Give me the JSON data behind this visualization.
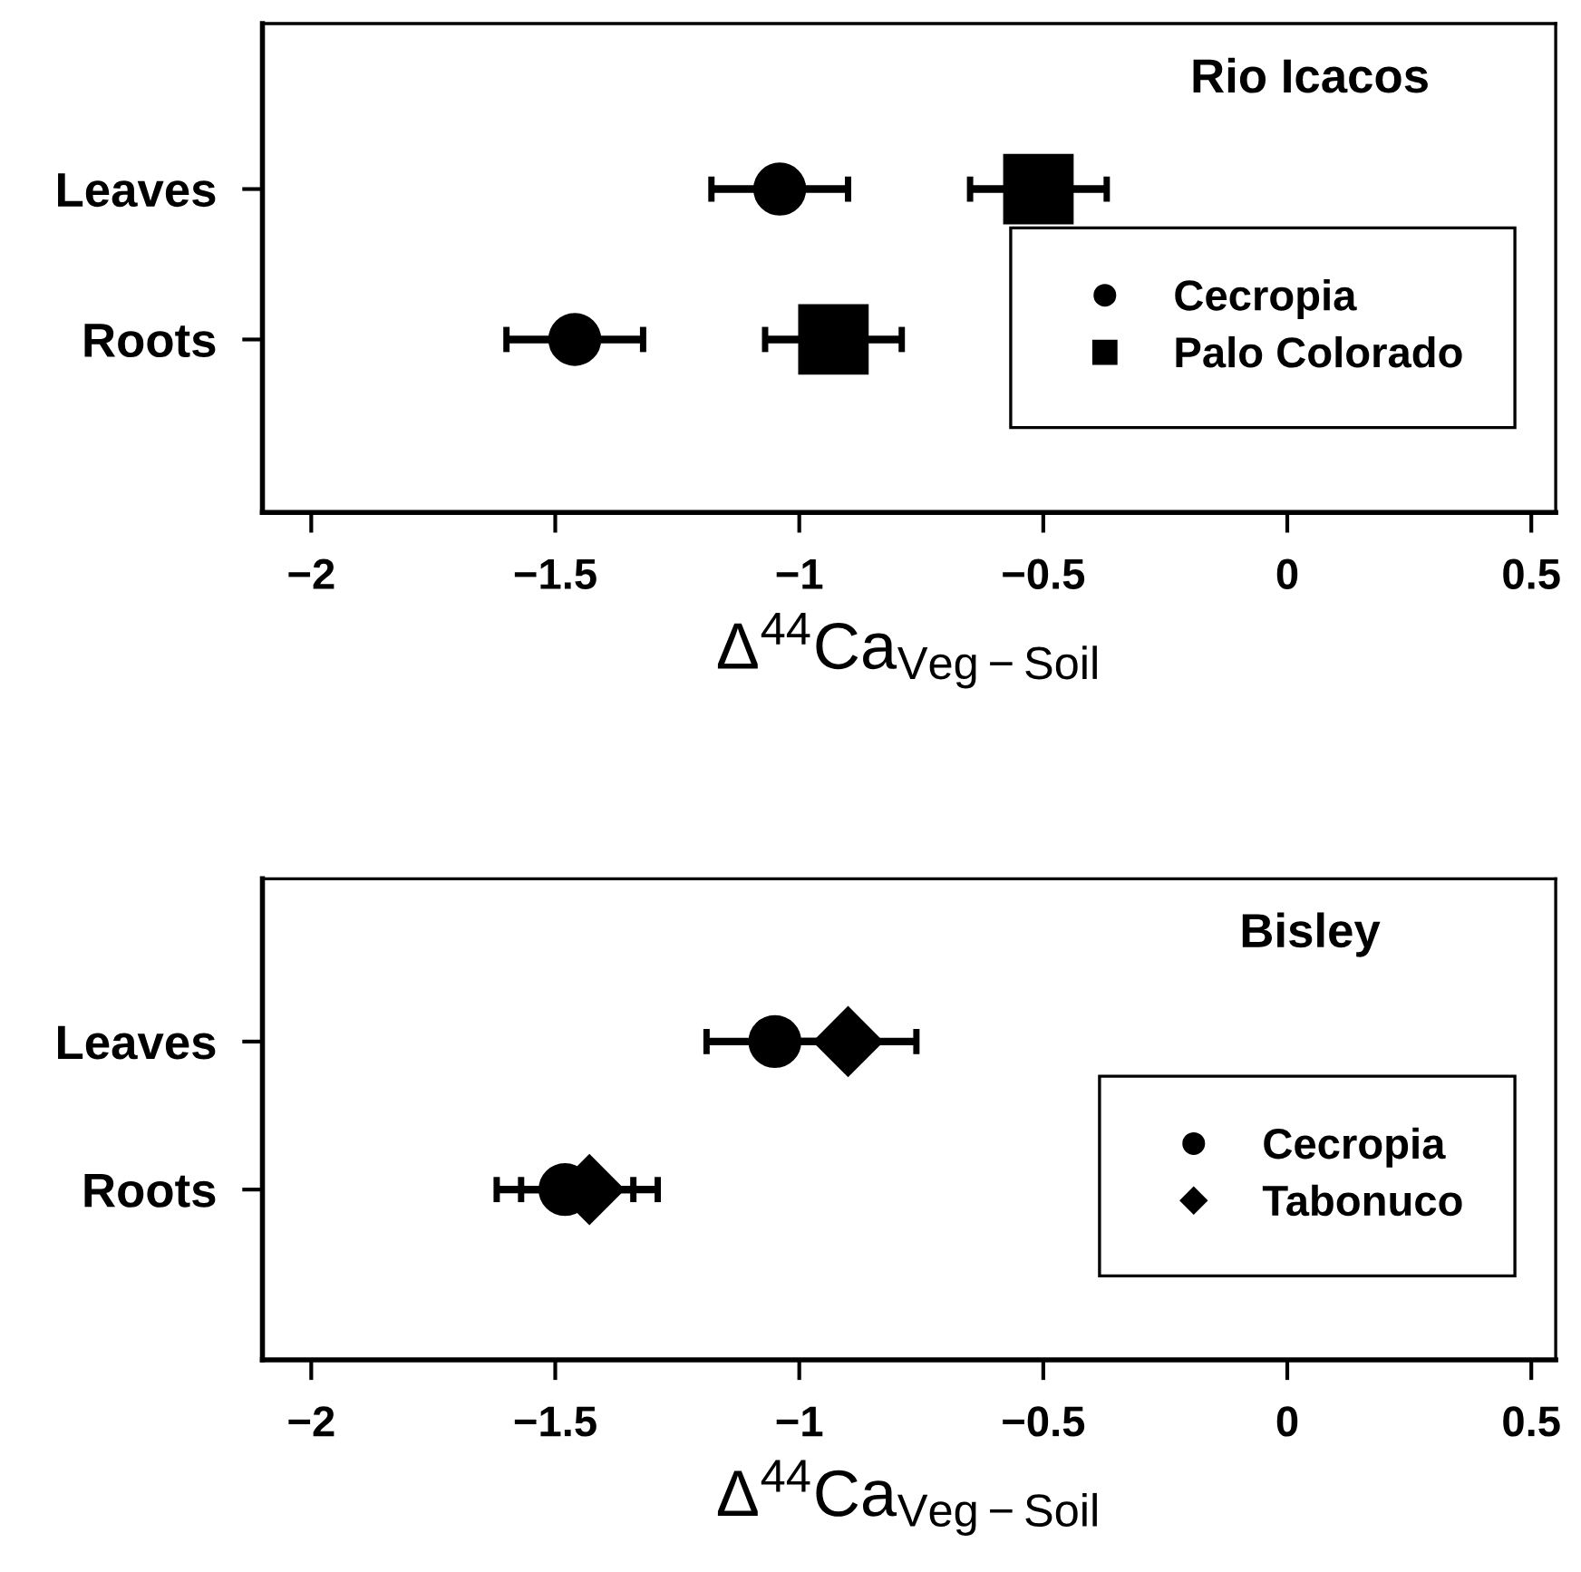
{
  "chart_data": [
    {
      "type": "scatter",
      "orientation": "horizontal",
      "title": "Rio Icacos",
      "xlabel": "Δ$^{44}$Ca$_{Veg−Soil}$",
      "categories": [
        "Leaves",
        "Roots"
      ],
      "xlim": [
        -2.1,
        0.55
      ],
      "xticks": [
        {
          "value": -2,
          "label": "−2"
        },
        {
          "value": -1.5,
          "label": "−1.5"
        },
        {
          "value": -1,
          "label": "−1"
        },
        {
          "value": -0.5,
          "label": "−0.5"
        },
        0,
        0.5
      ],
      "grid": false,
      "legend": "lower right",
      "series": [
        {
          "name": "Cecropia",
          "color": "#000000",
          "marker": "circle",
          "values": [
            -1.04,
            -1.46
          ],
          "errors": [
            0.14,
            0.14
          ]
        },
        {
          "name": "Palo Colorado",
          "color": "#000000",
          "marker": "square",
          "values": [
            -0.51,
            -0.93
          ],
          "errors": [
            0.14,
            0.14
          ]
        }
      ]
    },
    {
      "type": "scatter",
      "orientation": "horizontal",
      "title": "Bisley",
      "xlabel": "Δ$^{44}$Ca$_{Veg−Soil}$",
      "categories": [
        "Leaves",
        "Roots"
      ],
      "xlim": [
        -2.1,
        0.55
      ],
      "xticks": [
        {
          "value": -2,
          "label": "−2"
        },
        {
          "value": -1.5,
          "label": "−1.5"
        },
        {
          "value": -1,
          "label": "−1"
        },
        {
          "value": -0.5,
          "label": "−0.5"
        },
        0,
        0.5
      ],
      "grid": false,
      "legend": "lower right",
      "series": [
        {
          "name": "Cecropia",
          "color": "#000000",
          "marker": "circle",
          "values": [
            -1.05,
            -1.48
          ],
          "errors": [
            0.14,
            0.14
          ]
        },
        {
          "name": "Tabonuco",
          "color": "#000000",
          "marker": "diamond",
          "values": [
            -0.9,
            -1.43
          ],
          "errors": [
            0.14,
            0.14
          ]
        }
      ]
    }
  ]
}
